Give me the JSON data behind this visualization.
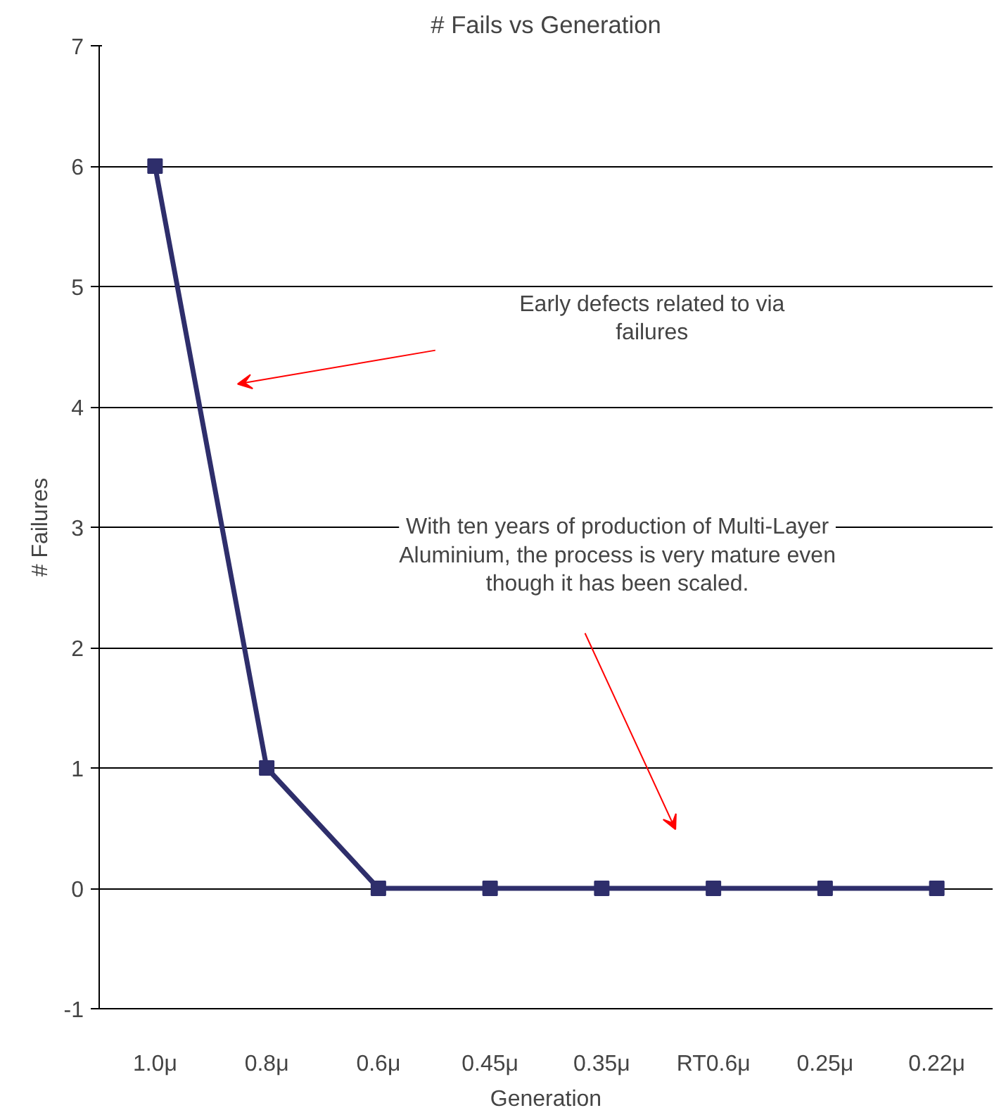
{
  "chart_data": {
    "type": "line",
    "title": "# Fails vs Generation",
    "xlabel": "Generation",
    "ylabel": "# Failures",
    "categories": [
      "1.0μ",
      "0.8μ",
      "0.6μ",
      "0.45μ",
      "0.35μ",
      "RT0.6μ",
      "0.25μ",
      "0.22μ"
    ],
    "values": [
      6,
      1,
      0,
      0,
      0,
      0,
      0,
      0
    ],
    "color": "#2e2e6b",
    "marker": "square",
    "line_style": "solid",
    "ylim": [
      -1,
      7
    ],
    "yticks": [
      -1,
      0,
      1,
      2,
      3,
      4,
      5,
      6,
      7
    ],
    "grid": "y",
    "annotations": [
      "Early defects related to via failures",
      "With ten years of production of Multi-Layer Aluminium, the process is very mature even though it has been scaled."
    ]
  }
}
